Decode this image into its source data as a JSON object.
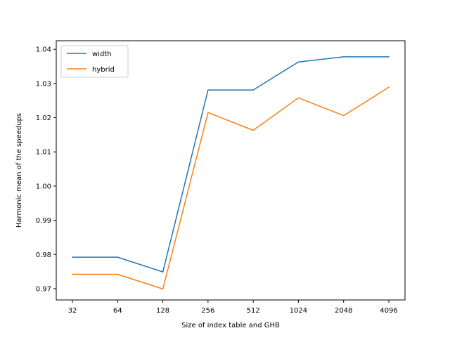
{
  "chart_data": {
    "type": "line",
    "title": "",
    "xlabel": "Size of index table and GHB",
    "ylabel": "Harmonic mean of the speedups",
    "categories": [
      "32",
      "64",
      "128",
      "256",
      "512",
      "1024",
      "2048",
      "4096"
    ],
    "series": [
      {
        "name": "width",
        "color": "#1f77b4",
        "values": [
          0.9792,
          0.9792,
          0.9749,
          1.0281,
          1.0281,
          1.0363,
          1.0378,
          1.0378
        ]
      },
      {
        "name": "hybrid",
        "color": "#ff7f0e",
        "values": [
          0.9742,
          0.9742,
          0.9699,
          1.0215,
          1.0163,
          1.0258,
          1.0206,
          1.0289
        ]
      }
    ],
    "yticks": [
      "0.97",
      "0.98",
      "0.99",
      "1.00",
      "1.01",
      "1.02",
      "1.03",
      "1.04"
    ],
    "ylim": [
      0.9667,
      1.0425
    ],
    "grid": false,
    "legend_position": "top-left"
  }
}
